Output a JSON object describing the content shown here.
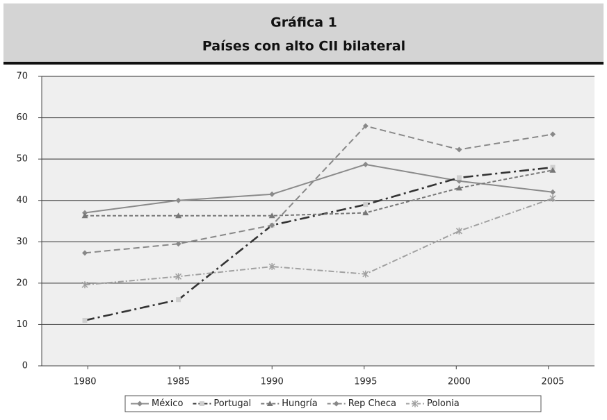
{
  "chart_data": {
    "type": "line",
    "title": "Gráfica 1",
    "subtitle": "Países con alto CII bilateral",
    "categories": [
      "1980",
      "1985",
      "1990",
      "1995",
      "2000",
      "2005"
    ],
    "ylim": [
      0,
      70
    ],
    "yticks": [
      0,
      10,
      20,
      30,
      40,
      50,
      60,
      70
    ],
    "grid": true,
    "legend": "bottom",
    "series": [
      {
        "name": "México",
        "color": "#8a8a8a",
        "dash": "none",
        "marker": "diamond",
        "values": [
          37,
          40,
          41.5,
          48.7,
          44.7,
          42
        ]
      },
      {
        "name": "Portugal",
        "color": "#333333",
        "dash": "14 5 3 5",
        "marker": "square",
        "values": [
          11,
          16,
          34,
          39,
          45.5,
          48
        ]
      },
      {
        "name": "Hungría",
        "color": "#777777",
        "dash": "5 3",
        "marker": "triangle",
        "values": [
          36.3,
          36.3,
          36.3,
          37,
          43,
          47.3
        ]
      },
      {
        "name": "Rep Checa",
        "color": "#888888",
        "dash": "9 5",
        "marker": "diamond",
        "values": [
          27.3,
          29.5,
          34,
          58,
          52.3,
          56
        ]
      },
      {
        "name": "Polonia",
        "color": "#a0a0a0",
        "dash": "8 3 2 3",
        "marker": "asterisk",
        "values": [
          19.6,
          21.6,
          24,
          22.2,
          32.6,
          40.5
        ]
      }
    ]
  }
}
